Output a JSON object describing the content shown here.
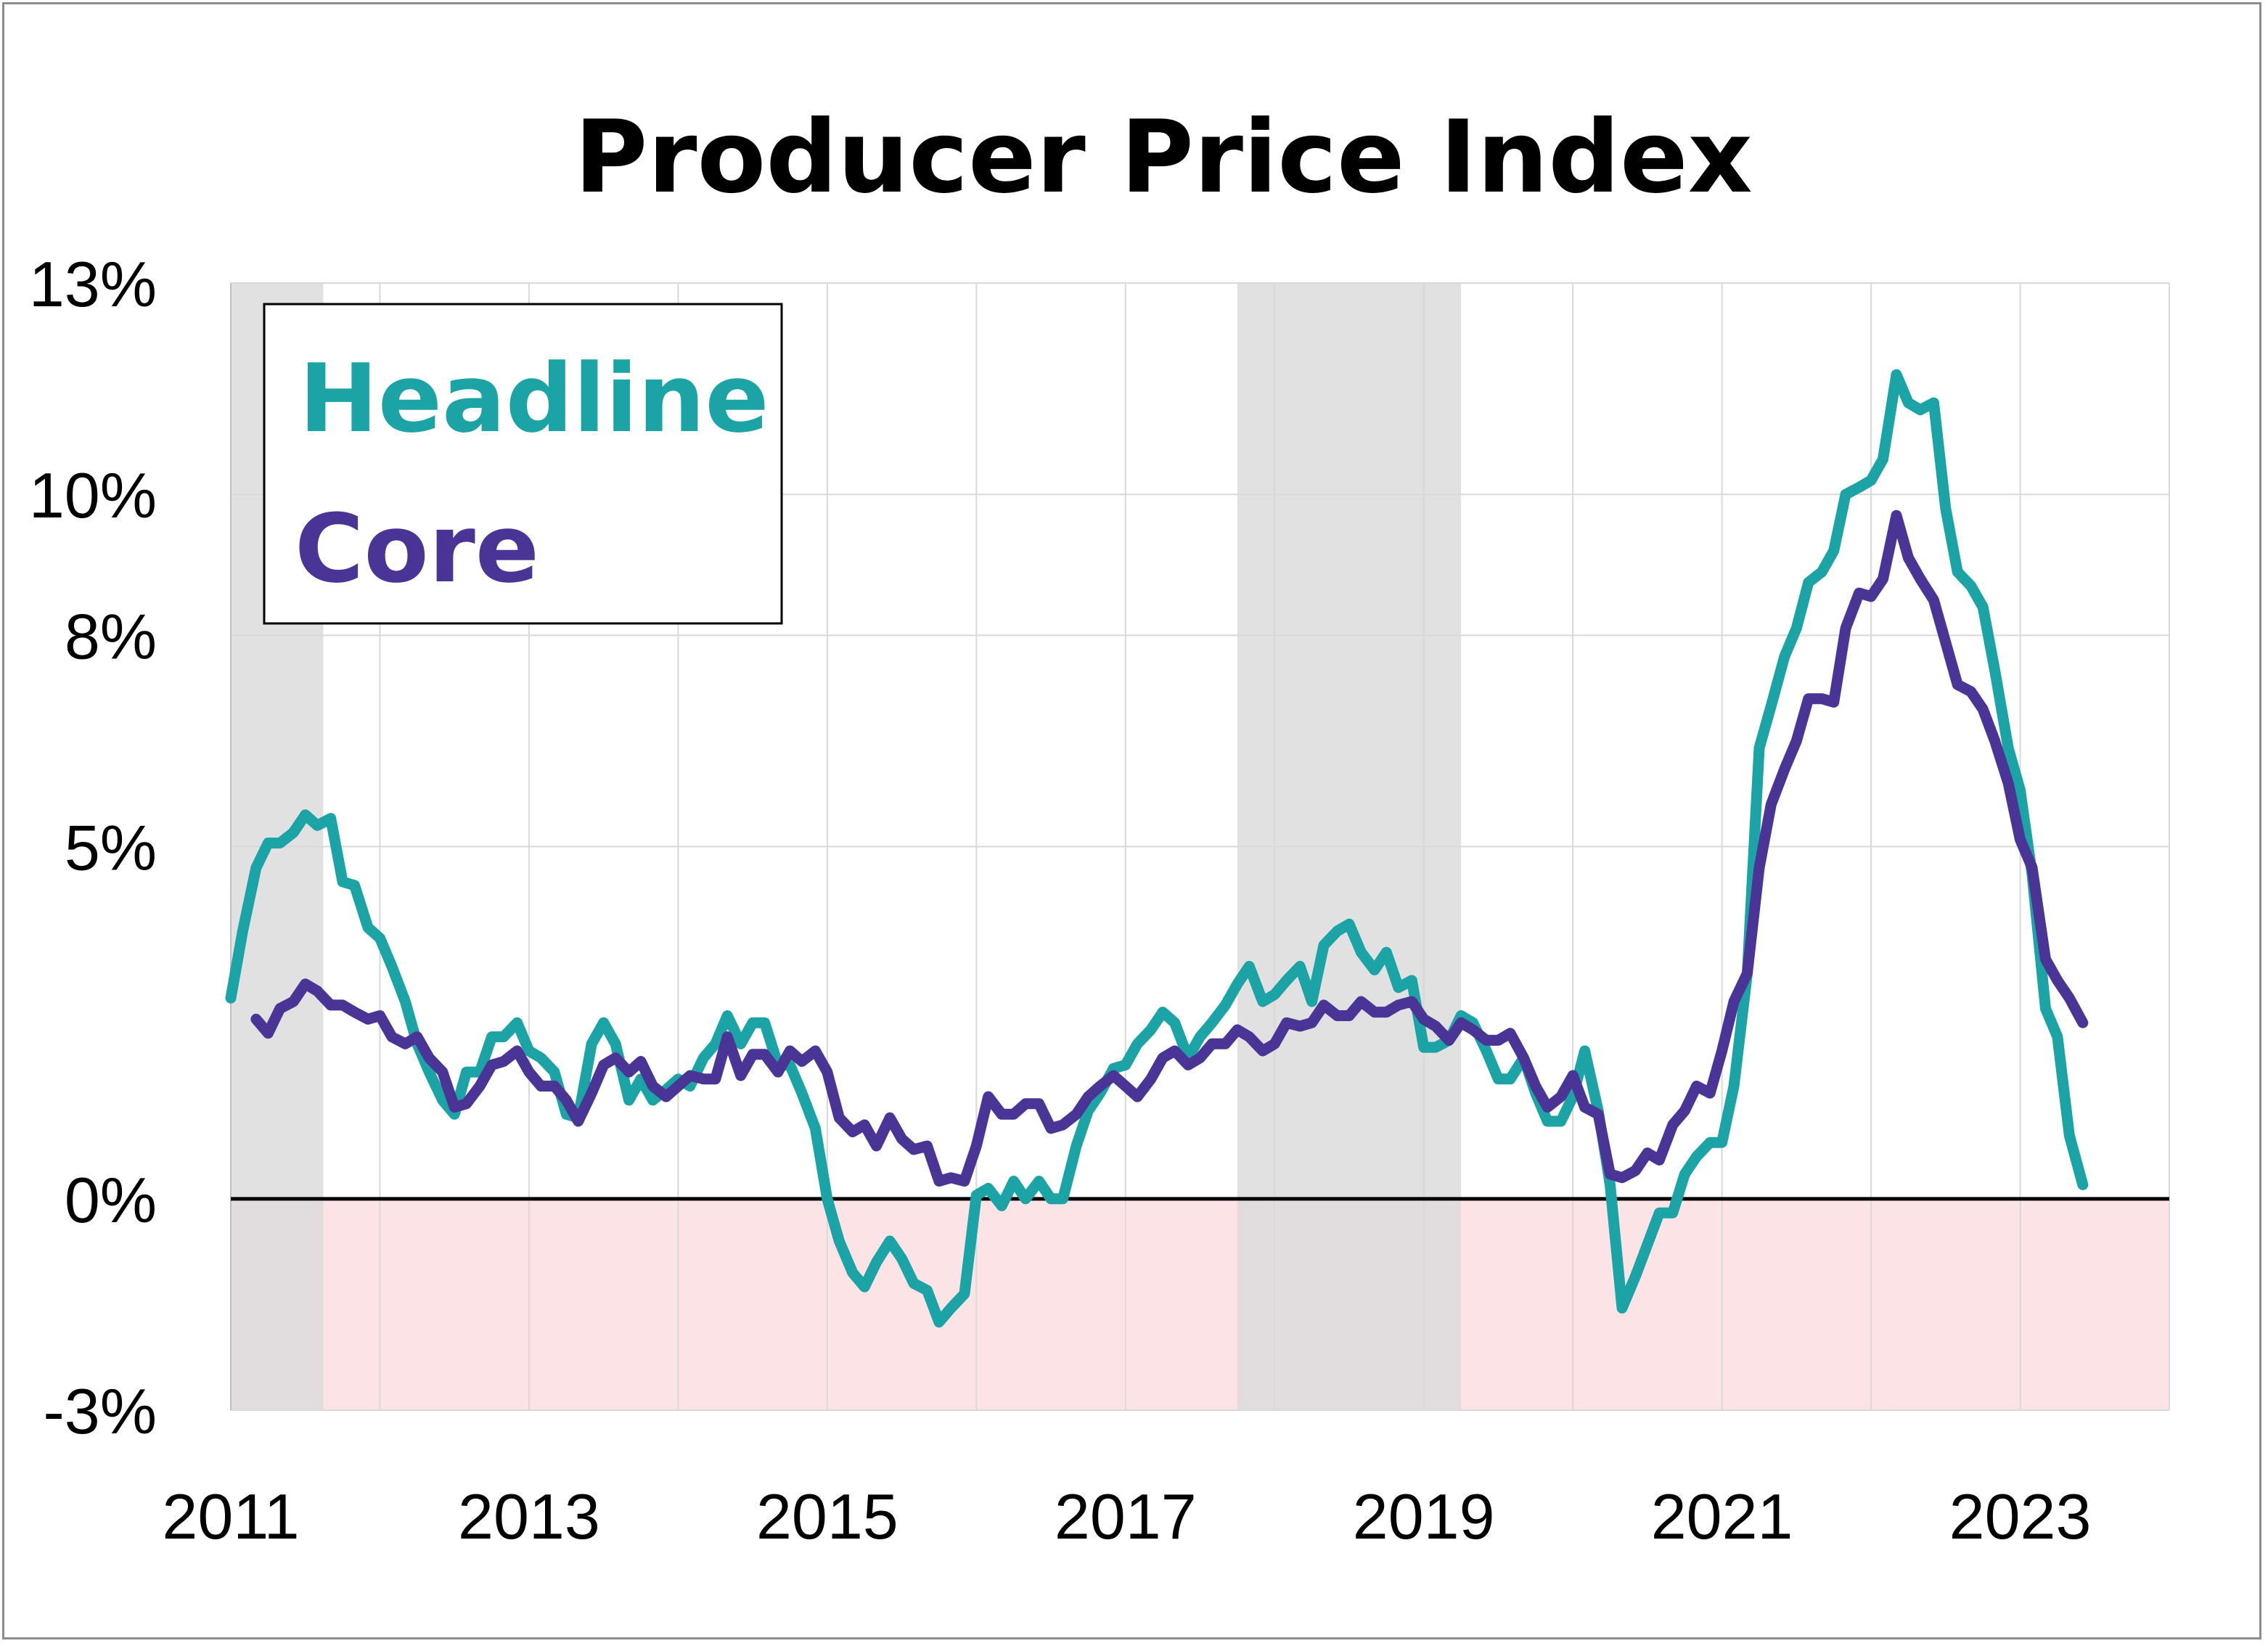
{
  "chart_data": {
    "type": "line",
    "title": "Producer Price Index",
    "xlabel": "",
    "ylabel": "",
    "xlim": [
      2011.0,
      2024.0
    ],
    "ylim": [
      -3,
      13
    ],
    "x_ticks": [
      2011,
      2013,
      2015,
      2017,
      2019,
      2021,
      2023
    ],
    "x_tick_labels": [
      "2011",
      "2013",
      "2015",
      "2017",
      "2019",
      "2021",
      "2023"
    ],
    "y_ticks": [
      -3,
      0,
      5,
      8,
      10,
      13
    ],
    "y_tick_labels": [
      "-3%",
      "0%",
      "5%",
      "8%",
      "10%",
      "13%"
    ],
    "grid": true,
    "legend_position": "top-left",
    "recession_shading": [
      {
        "start": 2011.0,
        "end": 2011.62
      },
      {
        "start": 2017.75,
        "end": 2019.25
      }
    ],
    "negative_region_color": "#fce4e6",
    "shading_color": "#dcdcdc",
    "series": [
      {
        "name": "Headline",
        "color": "#1ba3a6",
        "points": [
          [
            2011.0,
            2.85
          ],
          [
            2011.08,
            3.8
          ],
          [
            2011.17,
            4.7
          ],
          [
            2011.25,
            5.05
          ],
          [
            2011.33,
            5.05
          ],
          [
            2011.42,
            5.2
          ],
          [
            2011.5,
            5.45
          ],
          [
            2011.58,
            5.3
          ],
          [
            2011.67,
            5.4
          ],
          [
            2011.75,
            4.5
          ],
          [
            2011.83,
            4.45
          ],
          [
            2011.92,
            3.85
          ],
          [
            2012.0,
            3.7
          ],
          [
            2012.08,
            3.3
          ],
          [
            2012.17,
            2.8
          ],
          [
            2012.25,
            2.2
          ],
          [
            2012.33,
            1.8
          ],
          [
            2012.42,
            1.4
          ],
          [
            2012.5,
            1.2
          ],
          [
            2012.58,
            1.8
          ],
          [
            2012.67,
            1.8
          ],
          [
            2012.75,
            2.3
          ],
          [
            2012.83,
            2.3
          ],
          [
            2012.92,
            2.5
          ],
          [
            2013.0,
            2.1
          ],
          [
            2013.08,
            2.0
          ],
          [
            2013.17,
            1.8
          ],
          [
            2013.25,
            1.2
          ],
          [
            2013.33,
            1.15
          ],
          [
            2013.42,
            2.2
          ],
          [
            2013.5,
            2.5
          ],
          [
            2013.58,
            2.2
          ],
          [
            2013.67,
            1.4
          ],
          [
            2013.75,
            1.7
          ],
          [
            2013.83,
            1.4
          ],
          [
            2013.92,
            1.55
          ],
          [
            2014.0,
            1.7
          ],
          [
            2014.08,
            1.6
          ],
          [
            2014.17,
            2.0
          ],
          [
            2014.25,
            2.2
          ],
          [
            2014.33,
            2.6
          ],
          [
            2014.42,
            2.2
          ],
          [
            2014.5,
            2.5
          ],
          [
            2014.58,
            2.5
          ],
          [
            2014.67,
            1.9
          ],
          [
            2014.75,
            1.9
          ],
          [
            2014.83,
            1.5
          ],
          [
            2014.92,
            1.0
          ],
          [
            2015.0,
            0.0
          ],
          [
            2015.08,
            -0.6
          ],
          [
            2015.17,
            -1.05
          ],
          [
            2015.25,
            -1.25
          ],
          [
            2015.33,
            -0.9
          ],
          [
            2015.42,
            -0.6
          ],
          [
            2015.5,
            -0.85
          ],
          [
            2015.58,
            -1.2
          ],
          [
            2015.67,
            -1.3
          ],
          [
            2015.75,
            -1.75
          ],
          [
            2015.83,
            -1.55
          ],
          [
            2015.92,
            -1.35
          ],
          [
            2016.0,
            0.05
          ],
          [
            2016.08,
            0.15
          ],
          [
            2016.17,
            -0.1
          ],
          [
            2016.25,
            0.25
          ],
          [
            2016.33,
            0.0
          ],
          [
            2016.42,
            0.25
          ],
          [
            2016.5,
            0.0
          ],
          [
            2016.58,
            0.0
          ],
          [
            2016.67,
            0.75
          ],
          [
            2016.75,
            1.25
          ],
          [
            2016.83,
            1.5
          ],
          [
            2016.92,
            1.85
          ],
          [
            2017.0,
            1.9
          ],
          [
            2017.08,
            2.2
          ],
          [
            2017.17,
            2.4
          ],
          [
            2017.25,
            2.65
          ],
          [
            2017.33,
            2.5
          ],
          [
            2017.42,
            2.0
          ],
          [
            2017.5,
            2.3
          ],
          [
            2017.58,
            2.5
          ],
          [
            2017.67,
            2.75
          ],
          [
            2017.75,
            3.05
          ],
          [
            2017.83,
            3.3
          ],
          [
            2017.92,
            2.8
          ],
          [
            2018.0,
            2.9
          ],
          [
            2018.08,
            3.1
          ],
          [
            2018.17,
            3.3
          ],
          [
            2018.25,
            2.8
          ],
          [
            2018.33,
            3.6
          ],
          [
            2018.42,
            3.8
          ],
          [
            2018.5,
            3.9
          ],
          [
            2018.58,
            3.5
          ],
          [
            2018.67,
            3.25
          ],
          [
            2018.75,
            3.5
          ],
          [
            2018.83,
            3.0
          ],
          [
            2018.92,
            3.1
          ],
          [
            2019.0,
            2.15
          ],
          [
            2019.08,
            2.15
          ],
          [
            2019.17,
            2.25
          ],
          [
            2019.25,
            2.6
          ],
          [
            2019.33,
            2.5
          ],
          [
            2019.42,
            2.1
          ],
          [
            2019.5,
            1.7
          ],
          [
            2019.58,
            1.7
          ],
          [
            2019.67,
            2.0
          ],
          [
            2019.75,
            1.5
          ],
          [
            2019.83,
            1.1
          ],
          [
            2019.92,
            1.1
          ],
          [
            2020.0,
            1.45
          ],
          [
            2020.08,
            2.1
          ],
          [
            2020.17,
            1.25
          ],
          [
            2020.25,
            0.2
          ],
          [
            2020.33,
            -1.55
          ],
          [
            2020.42,
            -1.1
          ],
          [
            2020.5,
            -0.65
          ],
          [
            2020.58,
            -0.2
          ],
          [
            2020.67,
            -0.2
          ],
          [
            2020.75,
            0.35
          ],
          [
            2020.83,
            0.6
          ],
          [
            2020.92,
            0.8
          ],
          [
            2021.0,
            0.8
          ],
          [
            2021.08,
            1.6
          ],
          [
            2021.17,
            3.2
          ],
          [
            2021.25,
            6.4
          ],
          [
            2021.33,
            7.0
          ],
          [
            2021.42,
            7.7
          ],
          [
            2021.5,
            8.1
          ],
          [
            2021.58,
            8.75
          ],
          [
            2021.67,
            8.9
          ],
          [
            2021.75,
            9.2
          ],
          [
            2021.83,
            10.0
          ],
          [
            2021.92,
            10.1
          ],
          [
            2022.0,
            10.2
          ],
          [
            2022.08,
            10.5
          ],
          [
            2022.17,
            11.7
          ],
          [
            2022.25,
            11.3
          ],
          [
            2022.33,
            11.2
          ],
          [
            2022.42,
            11.3
          ],
          [
            2022.5,
            9.8
          ],
          [
            2022.58,
            8.9
          ],
          [
            2022.67,
            8.7
          ],
          [
            2022.75,
            8.4
          ],
          [
            2022.83,
            7.5
          ],
          [
            2022.92,
            6.4
          ],
          [
            2023.0,
            5.8
          ],
          [
            2023.08,
            4.6
          ],
          [
            2023.17,
            2.7
          ],
          [
            2023.25,
            2.3
          ],
          [
            2023.33,
            0.9
          ],
          [
            2023.42,
            0.2
          ]
        ]
      },
      {
        "name": "Core",
        "color": "#4a3597",
        "points": [
          [
            2011.17,
            2.55
          ],
          [
            2011.25,
            2.35
          ],
          [
            2011.33,
            2.7
          ],
          [
            2011.42,
            2.8
          ],
          [
            2011.5,
            3.05
          ],
          [
            2011.58,
            2.95
          ],
          [
            2011.67,
            2.75
          ],
          [
            2011.75,
            2.75
          ],
          [
            2011.83,
            2.65
          ],
          [
            2011.92,
            2.55
          ],
          [
            2012.0,
            2.6
          ],
          [
            2012.08,
            2.3
          ],
          [
            2012.17,
            2.2
          ],
          [
            2012.25,
            2.3
          ],
          [
            2012.33,
            2.0
          ],
          [
            2012.42,
            1.8
          ],
          [
            2012.5,
            1.3
          ],
          [
            2012.58,
            1.35
          ],
          [
            2012.67,
            1.6
          ],
          [
            2012.75,
            1.9
          ],
          [
            2012.83,
            1.95
          ],
          [
            2012.92,
            2.1
          ],
          [
            2013.0,
            1.8
          ],
          [
            2013.08,
            1.6
          ],
          [
            2013.17,
            1.6
          ],
          [
            2013.25,
            1.4
          ],
          [
            2013.33,
            1.1
          ],
          [
            2013.42,
            1.5
          ],
          [
            2013.5,
            1.9
          ],
          [
            2013.58,
            2.0
          ],
          [
            2013.67,
            1.8
          ],
          [
            2013.75,
            1.95
          ],
          [
            2013.83,
            1.6
          ],
          [
            2013.92,
            1.45
          ],
          [
            2014.0,
            1.6
          ],
          [
            2014.08,
            1.75
          ],
          [
            2014.17,
            1.7
          ],
          [
            2014.25,
            1.7
          ],
          [
            2014.33,
            2.3
          ],
          [
            2014.42,
            1.75
          ],
          [
            2014.5,
            2.05
          ],
          [
            2014.58,
            2.05
          ],
          [
            2014.67,
            1.8
          ],
          [
            2014.75,
            2.1
          ],
          [
            2014.83,
            1.95
          ],
          [
            2014.92,
            2.1
          ],
          [
            2015.0,
            1.8
          ],
          [
            2015.08,
            1.15
          ],
          [
            2015.17,
            0.95
          ],
          [
            2015.25,
            1.05
          ],
          [
            2015.33,
            0.75
          ],
          [
            2015.42,
            1.15
          ],
          [
            2015.5,
            0.85
          ],
          [
            2015.58,
            0.7
          ],
          [
            2015.67,
            0.75
          ],
          [
            2015.75,
            0.25
          ],
          [
            2015.83,
            0.3
          ],
          [
            2015.92,
            0.25
          ],
          [
            2016.0,
            0.75
          ],
          [
            2016.08,
            1.45
          ],
          [
            2016.17,
            1.2
          ],
          [
            2016.25,
            1.2
          ],
          [
            2016.33,
            1.35
          ],
          [
            2016.42,
            1.35
          ],
          [
            2016.5,
            1.0
          ],
          [
            2016.58,
            1.05
          ],
          [
            2016.67,
            1.2
          ],
          [
            2016.75,
            1.45
          ],
          [
            2016.83,
            1.6
          ],
          [
            2016.92,
            1.75
          ],
          [
            2017.0,
            1.6
          ],
          [
            2017.08,
            1.45
          ],
          [
            2017.17,
            1.7
          ],
          [
            2017.25,
            2.0
          ],
          [
            2017.33,
            2.1
          ],
          [
            2017.42,
            1.9
          ],
          [
            2017.5,
            2.0
          ],
          [
            2017.58,
            2.2
          ],
          [
            2017.67,
            2.2
          ],
          [
            2017.75,
            2.4
          ],
          [
            2017.83,
            2.3
          ],
          [
            2017.92,
            2.1
          ],
          [
            2018.0,
            2.2
          ],
          [
            2018.08,
            2.5
          ],
          [
            2018.17,
            2.45
          ],
          [
            2018.25,
            2.5
          ],
          [
            2018.33,
            2.75
          ],
          [
            2018.42,
            2.6
          ],
          [
            2018.5,
            2.6
          ],
          [
            2018.58,
            2.8
          ],
          [
            2018.67,
            2.65
          ],
          [
            2018.75,
            2.65
          ],
          [
            2018.83,
            2.75
          ],
          [
            2018.92,
            2.8
          ],
          [
            2019.0,
            2.55
          ],
          [
            2019.08,
            2.45
          ],
          [
            2019.17,
            2.25
          ],
          [
            2019.25,
            2.5
          ],
          [
            2019.33,
            2.4
          ],
          [
            2019.42,
            2.25
          ],
          [
            2019.5,
            2.25
          ],
          [
            2019.58,
            2.35
          ],
          [
            2019.67,
            2.0
          ],
          [
            2019.75,
            1.6
          ],
          [
            2019.83,
            1.3
          ],
          [
            2019.92,
            1.45
          ],
          [
            2020.0,
            1.75
          ],
          [
            2020.08,
            1.3
          ],
          [
            2020.17,
            1.2
          ],
          [
            2020.25,
            0.35
          ],
          [
            2020.33,
            0.3
          ],
          [
            2020.42,
            0.4
          ],
          [
            2020.5,
            0.65
          ],
          [
            2020.58,
            0.55
          ],
          [
            2020.67,
            1.05
          ],
          [
            2020.75,
            1.25
          ],
          [
            2020.83,
            1.6
          ],
          [
            2020.92,
            1.5
          ],
          [
            2021.0,
            2.1
          ],
          [
            2021.08,
            2.8
          ],
          [
            2021.17,
            3.2
          ],
          [
            2021.25,
            4.7
          ],
          [
            2021.33,
            5.6
          ],
          [
            2021.42,
            6.1
          ],
          [
            2021.5,
            6.5
          ],
          [
            2021.58,
            7.1
          ],
          [
            2021.67,
            7.1
          ],
          [
            2021.75,
            7.05
          ],
          [
            2021.83,
            8.1
          ],
          [
            2021.92,
            8.6
          ],
          [
            2022.0,
            8.55
          ],
          [
            2022.08,
            8.8
          ],
          [
            2022.17,
            9.7
          ],
          [
            2022.25,
            9.1
          ],
          [
            2022.33,
            8.8
          ],
          [
            2022.42,
            8.5
          ],
          [
            2022.5,
            7.9
          ],
          [
            2022.58,
            7.3
          ],
          [
            2022.67,
            7.2
          ],
          [
            2022.75,
            6.95
          ],
          [
            2022.83,
            6.5
          ],
          [
            2022.92,
            5.9
          ],
          [
            2023.0,
            5.1
          ],
          [
            2023.08,
            4.7
          ],
          [
            2023.17,
            3.4
          ],
          [
            2023.25,
            3.1
          ],
          [
            2023.33,
            2.85
          ],
          [
            2023.42,
            2.5
          ]
        ]
      }
    ]
  }
}
